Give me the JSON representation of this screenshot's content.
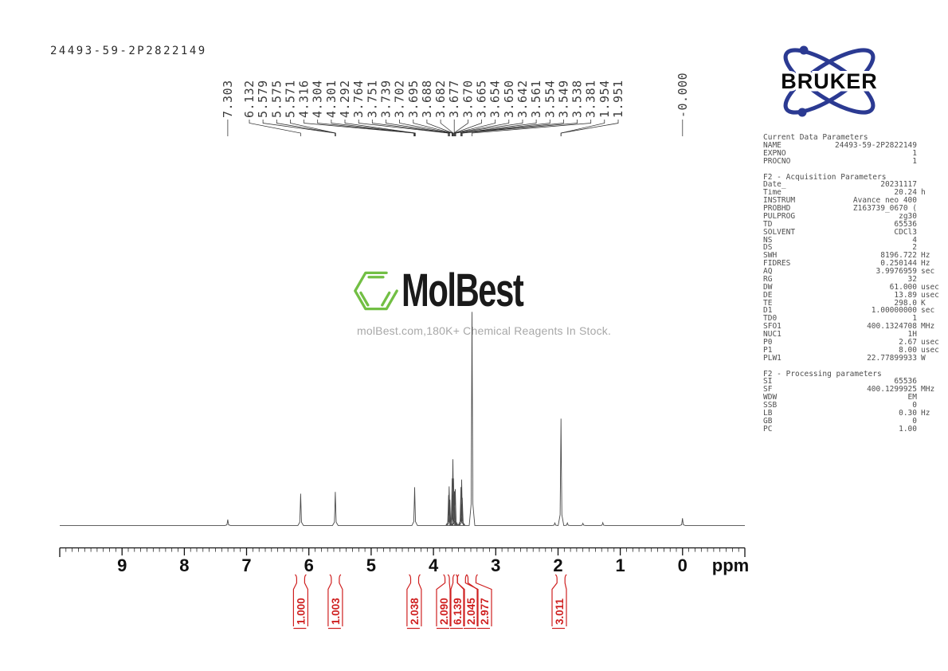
{
  "sample_id": "24493-59-2P2822149",
  "bruker": {
    "brand": "BRUKER",
    "blue": "#2b3a92"
  },
  "watermark": {
    "brand": "MolBest",
    "tagline": "molBest.com,180K+ Chemical Reagents In Stock.",
    "green": "#72bf44"
  },
  "parameters": {
    "sections": [
      {
        "title": "Current Data Parameters",
        "rows": [
          {
            "n": "NAME",
            "v": "24493-59-2P2822149",
            "u": ""
          },
          {
            "n": "EXPNO",
            "v": "1",
            "u": ""
          },
          {
            "n": "PROCNO",
            "v": "1",
            "u": ""
          }
        ]
      },
      {
        "title": "F2 - Acquisition Parameters",
        "rows": [
          {
            "n": "Date_",
            "v": "20231117",
            "u": ""
          },
          {
            "n": "Time",
            "v": "20.24",
            "u": "h"
          },
          {
            "n": "INSTRUM",
            "v": "Avance neo 400",
            "u": ""
          },
          {
            "n": "PROBHD",
            "v": "Z163739_0670 (",
            "u": ""
          },
          {
            "n": "PULPROG",
            "v": "zg30",
            "u": ""
          },
          {
            "n": "TD",
            "v": "65536",
            "u": ""
          },
          {
            "n": "SOLVENT",
            "v": "CDCl3",
            "u": ""
          },
          {
            "n": "NS",
            "v": "4",
            "u": ""
          },
          {
            "n": "DS",
            "v": "2",
            "u": ""
          },
          {
            "n": "SWH",
            "v": "8196.722",
            "u": "Hz"
          },
          {
            "n": "FIDRES",
            "v": "0.250144",
            "u": "Hz"
          },
          {
            "n": "AQ",
            "v": "3.9976959",
            "u": "sec"
          },
          {
            "n": "RG",
            "v": "32",
            "u": ""
          },
          {
            "n": "DW",
            "v": "61.000",
            "u": "usec"
          },
          {
            "n": "DE",
            "v": "13.89",
            "u": "usec"
          },
          {
            "n": "TE",
            "v": "298.0",
            "u": "K"
          },
          {
            "n": "D1",
            "v": "1.00000000",
            "u": "sec"
          },
          {
            "n": "TD0",
            "v": "1",
            "u": ""
          },
          {
            "n": "SFO1",
            "v": "400.1324708",
            "u": "MHz"
          },
          {
            "n": "NUC1",
            "v": "1H",
            "u": ""
          },
          {
            "n": "P0",
            "v": "2.67",
            "u": "usec"
          },
          {
            "n": "P1",
            "v": "8.00",
            "u": "usec"
          },
          {
            "n": "PLW1",
            "v": "22.77899933",
            "u": "W"
          }
        ]
      },
      {
        "title": "F2 - Processing parameters",
        "rows": [
          {
            "n": "SI",
            "v": "65536",
            "u": ""
          },
          {
            "n": "SF",
            "v": "400.1299925",
            "u": "MHz"
          },
          {
            "n": "WDW",
            "v": "EM",
            "u": ""
          },
          {
            "n": "SSB",
            "v": "0",
            "u": ""
          },
          {
            "n": "LB",
            "v": "0.30",
            "u": "Hz"
          },
          {
            "n": "GB",
            "v": "0",
            "u": ""
          },
          {
            "n": "PC",
            "v": "1.00",
            "u": ""
          }
        ]
      }
    ]
  },
  "chart_data": {
    "type": "line",
    "title": "1H NMR spectrum",
    "xlabel": "ppm",
    "axis": {
      "range_ppm": [
        10.0,
        -1.0
      ],
      "ticks": [
        9,
        8,
        7,
        6,
        5,
        4,
        3,
        2,
        1,
        0
      ],
      "unit_label": "ppm",
      "minor_step": 0.1
    },
    "peak_labels": [
      {
        "text": "7.303",
        "ppm": 7.303
      },
      {
        "text": "6.132",
        "ppm": 6.132
      },
      {
        "text": "5.579",
        "ppm": 5.579
      },
      {
        "text": "5.575",
        "ppm": 5.575
      },
      {
        "text": "5.571",
        "ppm": 5.571
      },
      {
        "text": "4.316",
        "ppm": 4.316
      },
      {
        "text": "4.304",
        "ppm": 4.304
      },
      {
        "text": "4.301",
        "ppm": 4.301
      },
      {
        "text": "4.292",
        "ppm": 4.292
      },
      {
        "text": "3.764",
        "ppm": 3.764
      },
      {
        "text": "3.751",
        "ppm": 3.751
      },
      {
        "text": "3.739",
        "ppm": 3.739
      },
      {
        "text": "3.702",
        "ppm": 3.702
      },
      {
        "text": "3.695",
        "ppm": 3.695
      },
      {
        "text": "3.688",
        "ppm": 3.688
      },
      {
        "text": "3.682",
        "ppm": 3.682
      },
      {
        "text": "3.677",
        "ppm": 3.677
      },
      {
        "text": "3.670",
        "ppm": 3.67
      },
      {
        "text": "3.665",
        "ppm": 3.665
      },
      {
        "text": "3.654",
        "ppm": 3.654
      },
      {
        "text": "3.650",
        "ppm": 3.65
      },
      {
        "text": "3.642",
        "ppm": 3.642
      },
      {
        "text": "3.561",
        "ppm": 3.561
      },
      {
        "text": "3.554",
        "ppm": 3.554
      },
      {
        "text": "3.549",
        "ppm": 3.549
      },
      {
        "text": "3.538",
        "ppm": 3.538
      },
      {
        "text": "3.381",
        "ppm": 3.381
      },
      {
        "text": "1.954",
        "ppm": 1.954
      },
      {
        "text": "1.951",
        "ppm": 1.951
      }
    ],
    "reference_label": {
      "text": "-0.000",
      "ppm": 0.0
    },
    "peaks": [
      {
        "ppm": 7.303,
        "h": 0.028
      },
      {
        "ppm": 6.132,
        "h": 0.149
      },
      {
        "ppm": 5.576,
        "h": 0.157
      },
      {
        "ppm": 4.302,
        "h": 0.179
      },
      {
        "ppm": 3.757,
        "h": 0.142
      },
      {
        "ppm": 3.748,
        "h": 0.183
      },
      {
        "ppm": 3.737,
        "h": 0.12
      },
      {
        "ppm": 3.699,
        "h": 0.22
      },
      {
        "ppm": 3.688,
        "h": 0.31
      },
      {
        "ppm": 3.677,
        "h": 0.22
      },
      {
        "ppm": 3.662,
        "h": 0.16
      },
      {
        "ppm": 3.65,
        "h": 0.17
      },
      {
        "ppm": 3.558,
        "h": 0.18
      },
      {
        "ppm": 3.547,
        "h": 0.215
      },
      {
        "ppm": 3.537,
        "h": 0.13
      },
      {
        "ppm": 3.381,
        "h": 1.0
      },
      {
        "ppm": 2.05,
        "h": 0.012
      },
      {
        "ppm": 1.952,
        "h": 0.5
      },
      {
        "ppm": 1.85,
        "h": 0.012
      },
      {
        "ppm": 1.6,
        "h": 0.01
      },
      {
        "ppm": 1.28,
        "h": 0.013
      },
      {
        "ppm": 0.002,
        "h": 0.034
      }
    ],
    "integrals": [
      {
        "value": "1.000",
        "center_ppm": 6.132,
        "region_ppm": 6.132
      },
      {
        "value": "1.003",
        "center_ppm": 5.576,
        "region_ppm": 5.576
      },
      {
        "value": "2.038",
        "center_ppm": 4.31,
        "region_ppm": 4.302
      },
      {
        "value": "2.090",
        "center_ppm": 3.835,
        "region_ppm": 3.75
      },
      {
        "value": "6.139",
        "center_ppm": 3.617,
        "region_ppm": 3.68
      },
      {
        "value": "2.045",
        "center_ppm": 3.4,
        "region_ppm": 3.55
      },
      {
        "value": "2.977",
        "center_ppm": 3.182,
        "region_ppm": 3.381
      },
      {
        "value": "3.011",
        "center_ppm": 1.98,
        "region_ppm": 1.952
      }
    ],
    "integral_color": "#cf2020"
  }
}
